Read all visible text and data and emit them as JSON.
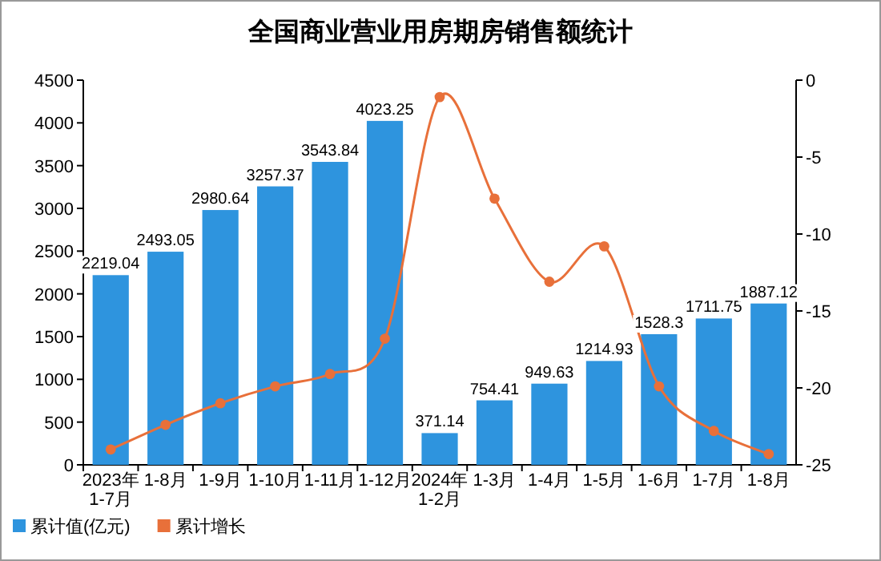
{
  "chart_data": {
    "type": "bar",
    "title": "全国商业营业用房期房销售额统计",
    "categories": [
      "2023年\n1-7月",
      "1-8月",
      "1-9月",
      "1-10月",
      "1-11月",
      "1-12月",
      "2024年\n1-2月",
      "1-3月",
      "1-4月",
      "1-5月",
      "1-6月",
      "1-7月",
      "1-8月"
    ],
    "series": [
      {
        "name": "累计值(亿元)",
        "color": "#2e94de",
        "values": [
          2219.04,
          2493.05,
          2980.64,
          3257.37,
          3543.84,
          4023.25,
          371.14,
          754.41,
          949.63,
          1214.93,
          1528.3,
          1711.75,
          1887.12
        ],
        "value_labels": [
          "2219.04",
          "2493.05",
          "2980.64",
          "3257.37",
          "3543.84",
          "4023.25",
          "371.14",
          "754.41",
          "949.63",
          "1214.93",
          "1528.3",
          "1711.75",
          "1887.12"
        ]
      },
      {
        "name": "累计增长",
        "type": "line",
        "axis": "y2",
        "color": "#e8703a",
        "marker": "circle",
        "values": [
          -24.0,
          -22.4,
          -21.0,
          -19.9,
          -19.1,
          -16.8,
          -1.1,
          -7.7,
          -13.1,
          -10.8,
          -19.9,
          -22.8,
          -24.3
        ]
      }
    ],
    "ylim": [
      0,
      4500
    ],
    "yticks": [
      0,
      500,
      1000,
      1500,
      2000,
      2500,
      3000,
      3500,
      4000,
      4500
    ],
    "y2lim": [
      -25,
      0
    ],
    "y2ticks": [
      0,
      -5,
      -10,
      -15,
      -20,
      -25
    ],
    "legend": "bottom left"
  }
}
